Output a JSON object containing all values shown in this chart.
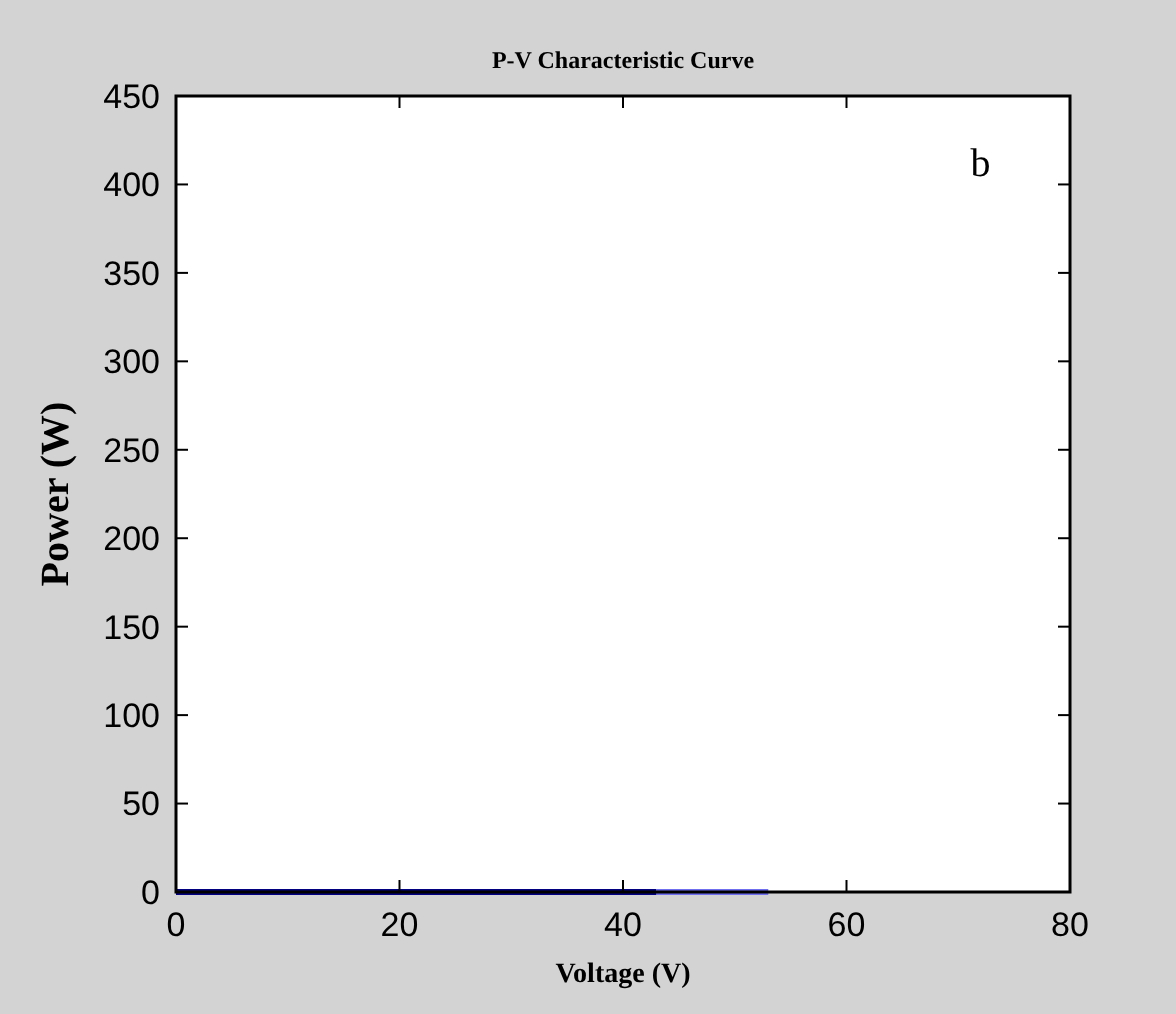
{
  "chart_data": {
    "type": "line",
    "title": "P-V Characteristic Curve",
    "xlabel": "Voltage (V)",
    "ylabel": "Power (W)",
    "annotations": [
      "b"
    ],
    "series": [
      {
        "color": "#000080",
        "x": [
          0,
          43
        ],
        "values": [
          0,
          0
        ]
      },
      {
        "color": "#6f6ff0",
        "x": [
          43,
          53
        ],
        "values": [
          0,
          0
        ]
      }
    ],
    "xlim": [
      0,
      80
    ],
    "xticks": [
      0,
      20,
      40,
      60,
      80
    ],
    "ylim": [
      0,
      450
    ],
    "yticks": [
      0,
      50,
      100,
      150,
      200,
      250,
      300,
      350,
      400,
      450
    ],
    "grid": false
  }
}
